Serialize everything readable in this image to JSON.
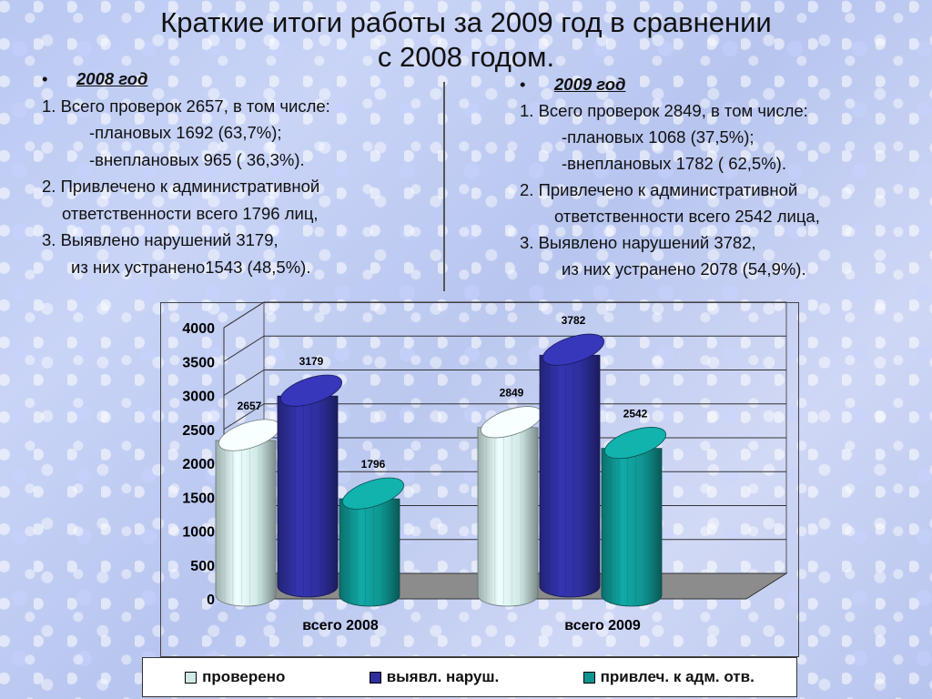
{
  "title": {
    "line1": "Краткие итоги работы за 2009 год в сравнении",
    "line2": "с 2008 годом."
  },
  "left": {
    "bullet": "•",
    "heading": "2008 год",
    "lines": [
      "1. Всего проверок 2657, в том числе:",
      "-плановых 1692 (63,7%);",
      "-внеплановых 965 ( 36,3%).",
      "2. Привлечено к административной",
      "ответственности всего 1796 лиц,",
      "3. Выявлено нарушений 3179,",
      "из них устранено1543 (48,5%)."
    ]
  },
  "right": {
    "bullet": "•",
    "heading": "2009 год",
    "lines": [
      "1. Всего проверок 2849, в том числе:",
      "-плановых 1068 (37,5%);",
      "-внеплановых 1782 ( 62,5%).",
      "2. Привлечено к административной",
      "ответственности всего 2542 лица,",
      "3. Выявлено нарушений 3782,",
      "из них устранено 2078 (54,9%)."
    ]
  },
  "chart_data": {
    "type": "bar",
    "style": "3d-cylinder",
    "categories": [
      "всего 2008",
      "всего 2009"
    ],
    "series": [
      {
        "name": "проверено",
        "values": [
          2657,
          2849
        ],
        "color": "#cfe9e7"
      },
      {
        "name": "выявл. наруш.",
        "values": [
          3179,
          3782
        ],
        "color": "#2e2e9c"
      },
      {
        "name": "привлеч. к адм. отв.",
        "values": [
          1796,
          2542
        ],
        "color": "#0f9490"
      }
    ],
    "yticks": [
      "0",
      "500",
      "1000",
      "1500",
      "2000",
      "2500",
      "3000",
      "3500",
      "4000"
    ],
    "ylim": [
      0,
      4000
    ],
    "grid": true,
    "legend_position": "bottom"
  }
}
